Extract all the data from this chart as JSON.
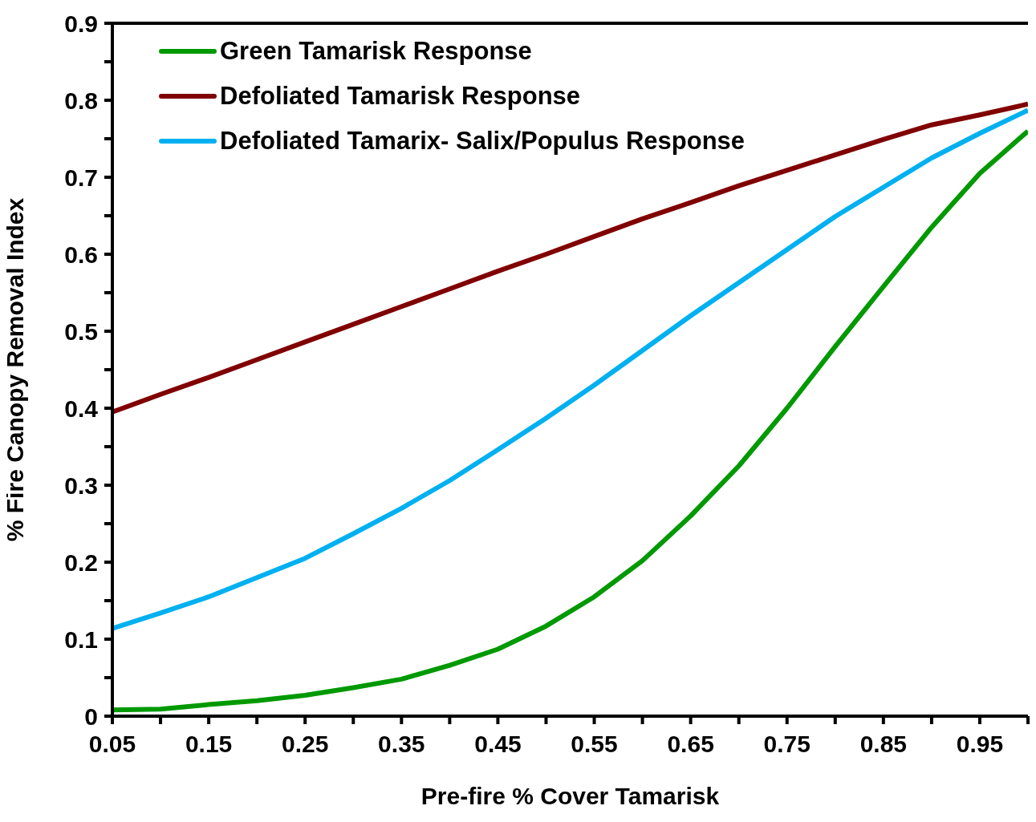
{
  "chart_data": {
    "type": "line",
    "xlabel": "Pre-fire % Cover Tamarisk",
    "ylabel": "% Fire Canopy Removal Index",
    "x": [
      0.05,
      0.1,
      0.15,
      0.2,
      0.25,
      0.3,
      0.35,
      0.4,
      0.45,
      0.5,
      0.55,
      0.6,
      0.65,
      0.7,
      0.75,
      0.8,
      0.85,
      0.9,
      0.95,
      1.0
    ],
    "series": [
      {
        "name": "Green Tamarisk Response",
        "color": "#009900",
        "values": [
          0.008,
          0.009,
          0.015,
          0.02,
          0.027,
          0.037,
          0.048,
          0.066,
          0.087,
          0.117,
          0.155,
          0.202,
          0.26,
          0.325,
          0.4,
          0.48,
          0.558,
          0.635,
          0.705,
          0.76
        ]
      },
      {
        "name": "Defoliated Tamarisk Response",
        "color": "#800000",
        "values": [
          0.395,
          0.418,
          0.44,
          0.463,
          0.486,
          0.509,
          0.532,
          0.555,
          0.578,
          0.6,
          0.623,
          0.646,
          0.667,
          0.689,
          0.709,
          0.729,
          0.749,
          0.768,
          0.781,
          0.795
        ]
      },
      {
        "name": "Defoliated Tamarix- Salix/Populus Response",
        "color": "#00b0f0",
        "values": [
          0.114,
          0.134,
          0.155,
          0.18,
          0.205,
          0.237,
          0.27,
          0.306,
          0.346,
          0.387,
          0.43,
          0.475,
          0.52,
          0.563,
          0.606,
          0.649,
          0.687,
          0.725,
          0.757,
          0.787
        ]
      }
    ],
    "xlim": [
      0.05,
      1.0
    ],
    "xticks": [
      0.05,
      {
        "value": 0.1,
        "label": null
      },
      0.15,
      {
        "value": 0.2,
        "label": null
      },
      0.25,
      {
        "value": 0.3,
        "label": null
      },
      0.35,
      {
        "value": 0.4,
        "label": null
      },
      0.45,
      {
        "value": 0.5,
        "label": null
      },
      0.55,
      {
        "value": 0.6,
        "label": null
      },
      0.65,
      {
        "value": 0.7,
        "label": null
      },
      0.75,
      {
        "value": 0.8,
        "label": null
      },
      0.85,
      {
        "value": 0.9,
        "label": null
      },
      0.95,
      {
        "value": 1.0,
        "label": null
      }
    ],
    "ylim": [
      0,
      0.9
    ],
    "yticks": [
      0,
      {
        "value": 0.05,
        "label": null
      },
      0.1,
      {
        "value": 0.15,
        "label": null
      },
      0.2,
      {
        "value": 0.25,
        "label": null
      },
      0.3,
      {
        "value": 0.35,
        "label": null
      },
      0.4,
      {
        "value": 0.45,
        "label": null
      },
      0.5,
      {
        "value": 0.55,
        "label": null
      },
      0.6,
      {
        "value": 0.65,
        "label": null
      },
      0.7,
      {
        "value": 0.75,
        "label": null
      },
      0.8,
      {
        "value": 0.85,
        "label": null
      },
      0.9
    ],
    "grid": false,
    "legend": "top left",
    "marker": "none",
    "line_style": "solid"
  }
}
